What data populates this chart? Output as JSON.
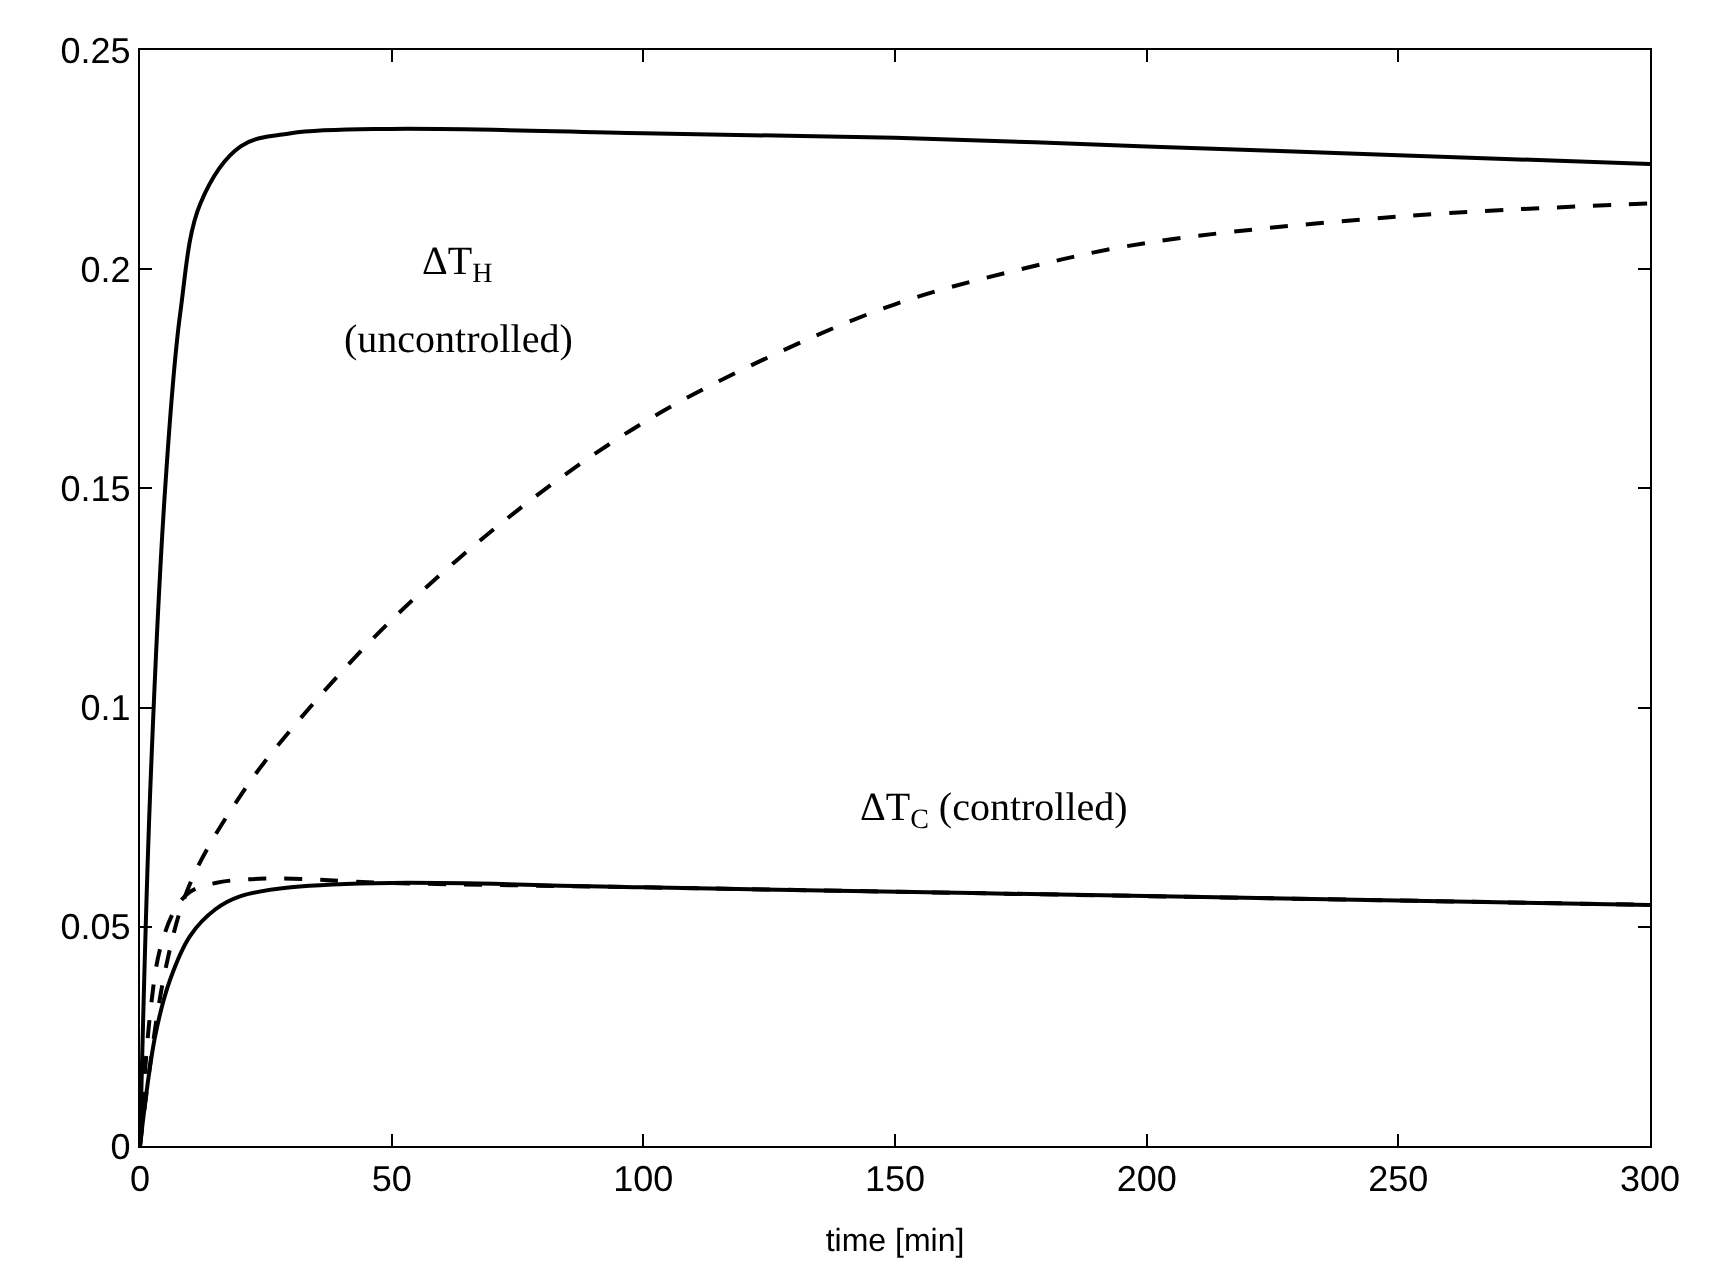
{
  "chart_data": {
    "type": "line",
    "xlabel": "time [min]",
    "xlim": [
      0,
      300
    ],
    "xticks": [
      0,
      50,
      100,
      150,
      200,
      250,
      300
    ],
    "ylim": [
      0,
      0.25
    ],
    "yticks": [
      0,
      0.05,
      0.1,
      0.15,
      0.2,
      0.25
    ],
    "marker": "none",
    "series": [
      {
        "color": "#000000",
        "line_style": "solid",
        "x": [
          0,
          2,
          5,
          8,
          12,
          20,
          30,
          50,
          100,
          150,
          200,
          250,
          300
        ],
        "values": [
          0,
          0.08,
          0.15,
          0.19,
          0.215,
          0.228,
          0.231,
          0.232,
          0.231,
          0.23,
          0.228,
          0.226,
          0.224
        ]
      },
      {
        "color": "#000000",
        "line_style": "dashed",
        "x": [
          0,
          5,
          10,
          20,
          30,
          50,
          75,
          100,
          125,
          150,
          175,
          200,
          250,
          300
        ],
        "values": [
          0,
          0.04,
          0.06,
          0.08,
          0.095,
          0.12,
          0.145,
          0.165,
          0.18,
          0.192,
          0.2,
          0.206,
          0.212,
          0.215
        ]
      },
      {
        "color": "#000000",
        "line_style": "solid",
        "x": [
          0,
          3,
          6,
          10,
          15,
          20,
          30,
          50,
          100,
          200,
          300
        ],
        "values": [
          0,
          0.025,
          0.038,
          0.048,
          0.054,
          0.057,
          0.059,
          0.06,
          0.059,
          0.057,
          0.055
        ]
      },
      {
        "color": "#000000",
        "line_style": "dashed",
        "x": [
          0,
          2,
          4,
          7,
          10,
          15,
          25,
          50,
          100,
          200,
          300
        ],
        "values": [
          0,
          0.03,
          0.045,
          0.054,
          0.058,
          0.06,
          0.061,
          0.06,
          0.059,
          0.057,
          0.055
        ]
      }
    ],
    "annotations": [
      "ΔT$_{H}$",
      "(uncontrolled)",
      "ΔT$_{C}$ (controlled)"
    ]
  }
}
